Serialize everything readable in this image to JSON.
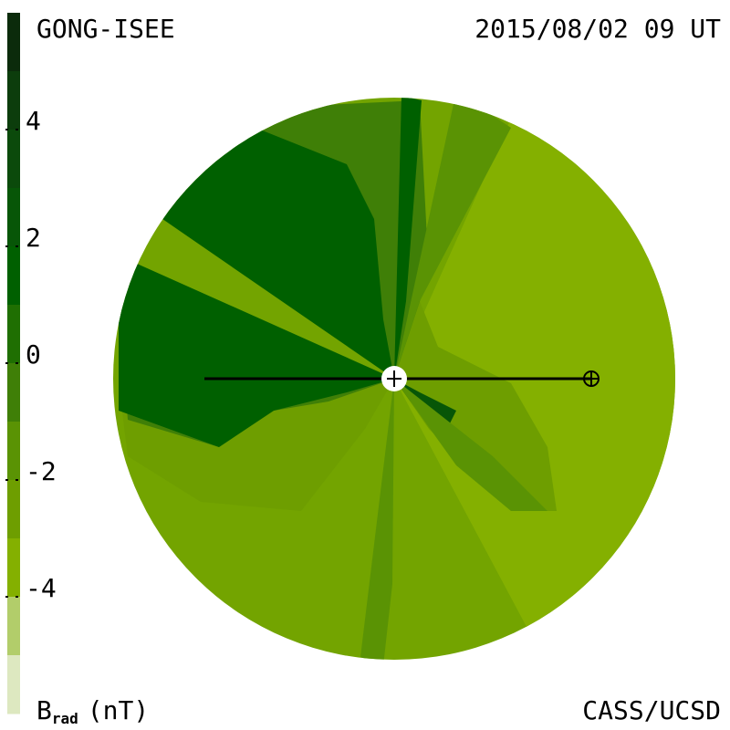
{
  "header": {
    "source": "GONG-ISEE",
    "timestamp": "2015/08/02 09 UT"
  },
  "colorbar": {
    "label": "B",
    "label_subscript": "rad",
    "unit": "(nT)",
    "lim": [
      -6,
      6
    ],
    "ticks": [
      4,
      2,
      0,
      -2,
      -4
    ],
    "colors": [
      "#0b2b0b",
      "#0c3d0c",
      "#0b4a0b",
      "#075607",
      "#006000",
      "#1f6f02",
      "#3f7f07",
      "#5a9304",
      "#6e9e00",
      "#84b000",
      "#b2cd6a",
      "#dde8c0"
    ]
  },
  "footer": {
    "credit": "CASS/UCSD"
  }
}
